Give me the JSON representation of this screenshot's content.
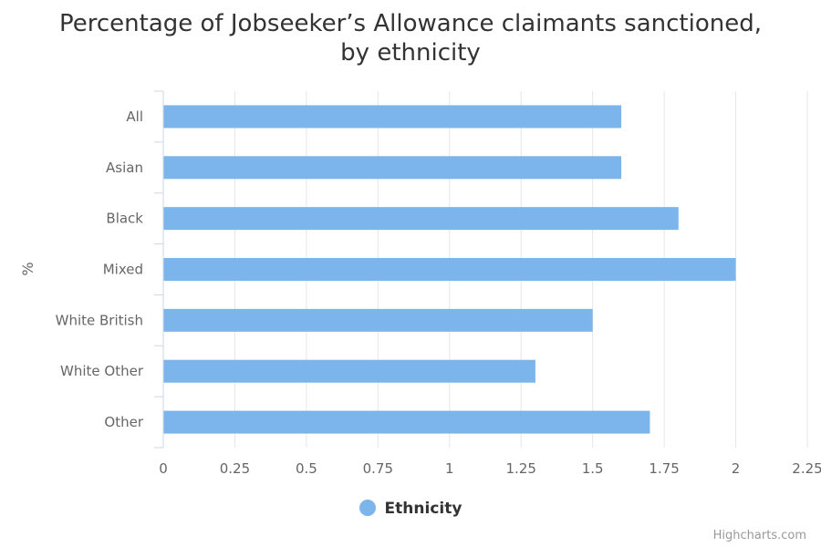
{
  "chart_data": {
    "type": "bar",
    "orientation": "horizontal",
    "title_line1": "Percentage of Jobseeker’s Allowance claimants sanctioned,",
    "title_line2": "by ethnicity",
    "xlabel": "",
    "ylabel": "%",
    "categories": [
      "All",
      "Asian",
      "Black",
      "Mixed",
      "White British",
      "White Other",
      "Other"
    ],
    "series": [
      {
        "name": "Ethnicity",
        "values": [
          1.6,
          1.6,
          1.8,
          2.0,
          1.5,
          1.3,
          1.7
        ]
      }
    ],
    "xlim": [
      0,
      2.25
    ],
    "ticks": [
      "0",
      "0.25",
      "0.5",
      "0.75",
      "1",
      "1.25",
      "1.5",
      "1.75",
      "2",
      "2.25"
    ],
    "grid": true,
    "legend_position": "bottom",
    "bar_color": "#7cb5ec"
  },
  "credits": "Highcharts.com"
}
